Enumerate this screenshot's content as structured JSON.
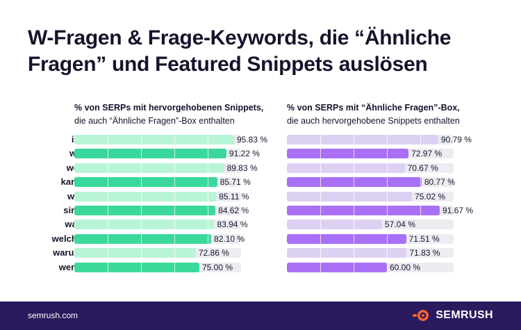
{
  "title_line1": "W-Fragen & Frage-Keywords, die “Ähnliche",
  "title_line2": "Fragen” und Featured Snippets auslösen",
  "footer_url": "semrush.com",
  "brand": "SEMRUSH",
  "colors": {
    "left_fill": "#3ad99b",
    "left_fill_light": "#b8f5d6",
    "right_fill": "#a970f5",
    "right_fill_light": "#ddd1f3",
    "track": "#ececf1",
    "footer": "#2a1a5e",
    "logo": "#ff642d"
  },
  "chart_data": [
    {
      "type": "bar",
      "subtitle_line1": "% von SERPs mit hervorgehobenen Snippets,",
      "subtitle_line2": "die auch “Ähnliche Fragen”-Box enthalten",
      "categories": [
        "ist",
        "wo",
        "wer",
        "kann",
        "wie",
        "sind",
        "was",
        "welche",
        "warum",
        "wenn"
      ],
      "values": [
        95.83,
        91.22,
        89.83,
        85.71,
        85.11,
        84.62,
        83.94,
        82.1,
        72.86,
        75.0
      ],
      "value_labels": [
        "95.83 %",
        "91.22 %",
        "89.83 %",
        "85.71 %",
        "85.11 %",
        "84.62 %",
        "83.94 %",
        "82.10 %",
        "72.86 %",
        "75.00 %"
      ],
      "highlight": [
        false,
        true,
        false,
        true,
        false,
        true,
        false,
        true,
        false,
        true
      ],
      "ylim": [
        0,
        100
      ]
    },
    {
      "type": "bar",
      "subtitle_line1": "% von SERPs mit “Ähnliche Fragen”-Box,",
      "subtitle_line2": "die auch hervorgehobene Snippets enthalten",
      "categories": [
        "ist",
        "wo",
        "wer",
        "kann",
        "wie",
        "sind",
        "was",
        "welche",
        "warum",
        "wenn"
      ],
      "values": [
        90.79,
        72.97,
        70.67,
        80.77,
        75.02,
        91.67,
        57.04,
        71.51,
        71.83,
        60.0
      ],
      "value_labels": [
        "90.79 %",
        "72.97 %",
        "70.67 %",
        "80.77 %",
        "75.02 %",
        "91.67 %",
        "57.04 %",
        "71.51 %",
        "71.83 %",
        "60.00 %"
      ],
      "highlight": [
        false,
        true,
        false,
        true,
        false,
        true,
        false,
        true,
        false,
        true
      ],
      "ylim": [
        0,
        100
      ]
    }
  ]
}
